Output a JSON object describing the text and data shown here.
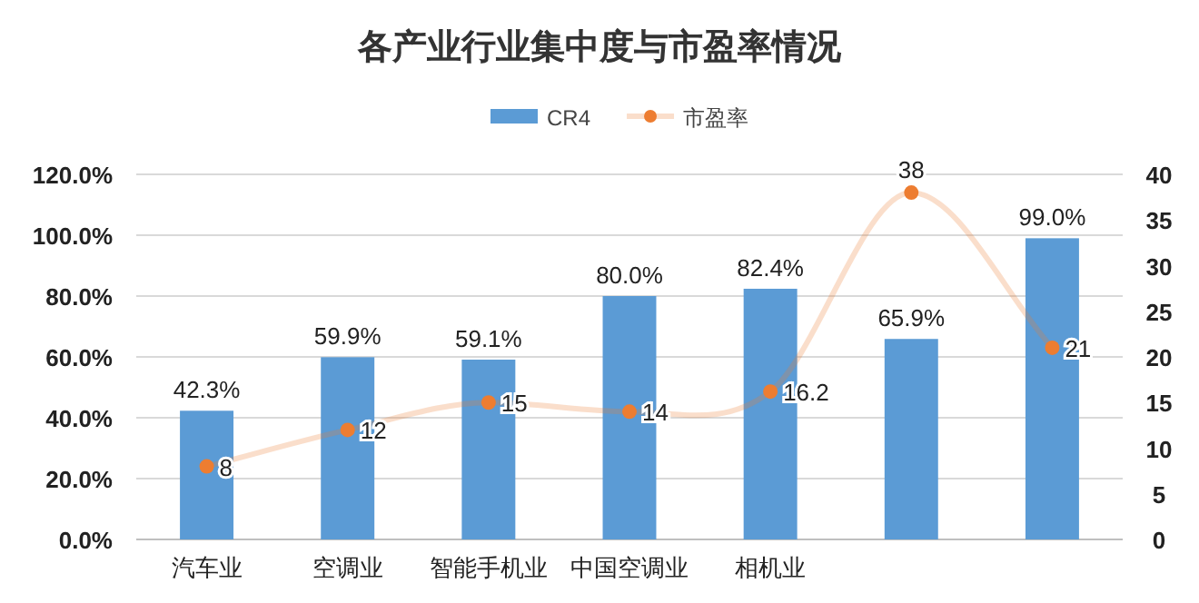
{
  "chart_data": {
    "type": "bar",
    "title": "各产业行业集中度与市盈率情况",
    "categories": [
      "汽车业",
      "空调业",
      "智能手机业",
      "中国空调业",
      "相机业",
      null,
      null
    ],
    "series": [
      {
        "name": "CR4",
        "color": "#5b9bd5",
        "values": [
          42.3,
          59.9,
          59.1,
          80.0,
          82.4,
          65.9,
          99.0
        ],
        "value_labels": [
          "42.3%",
          "59.9%",
          "59.1%",
          "80.0%",
          "82.4%",
          "65.9%",
          "99.0%"
        ]
      },
      {
        "name": "市盈率",
        "type": "line",
        "axis": "y2",
        "color": "#ed7d31",
        "marker": "circle",
        "values": [
          8,
          12,
          15,
          14,
          16.2,
          38,
          21
        ],
        "value_labels": [
          "8",
          "12",
          "15",
          "14",
          "16.2",
          "38",
          "21"
        ]
      }
    ],
    "ylim": [
      0,
      120
    ],
    "yticks": [
      {
        "value": 0,
        "label": "0.0%"
      },
      {
        "value": 20,
        "label": "20.0%"
      },
      {
        "value": 40,
        "label": "40.0%"
      },
      {
        "value": 60,
        "label": "60.0%"
      },
      {
        "value": 80,
        "label": "80.0%"
      },
      {
        "value": 100,
        "label": "100.0%"
      },
      {
        "value": 120,
        "label": "120.0%"
      }
    ],
    "y2lim": [
      0,
      40
    ],
    "y2ticks": [
      0,
      5,
      10,
      15,
      20,
      25,
      30,
      35,
      40
    ],
    "grid": "y",
    "legend": "top"
  }
}
